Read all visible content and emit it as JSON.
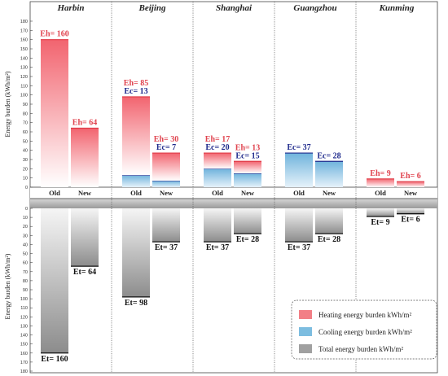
{
  "chart_data": {
    "type": "bar",
    "ylabel_top": "Energy burden (kWh/m²)",
    "ylabel_bottom": "Energy burden (kWh/m²)",
    "ylim_top": [
      0,
      180
    ],
    "ylim_bottom": [
      0,
      180
    ],
    "yticks": [
      0,
      10,
      20,
      30,
      40,
      50,
      60,
      70,
      80,
      90,
      100,
      110,
      120,
      130,
      140,
      150,
      160,
      170,
      180
    ],
    "categories": [
      "Old",
      "New"
    ],
    "cities": [
      {
        "name": "Harbin",
        "bars": [
          {
            "label": "Old",
            "heating": 160,
            "heating_text": "Eh= 160",
            "cooling": 0,
            "cooling_text": "",
            "total": 160,
            "total_text": "Et= 160"
          },
          {
            "label": "New",
            "heating": 64,
            "heating_text": "Eh= 64",
            "cooling": 0,
            "cooling_text": "",
            "total": 64,
            "total_text": "Et= 64"
          }
        ]
      },
      {
        "name": "Beijing",
        "bars": [
          {
            "label": "Old",
            "heating": 85,
            "heating_text": "Eh= 85",
            "cooling": 13,
            "cooling_text": "Ec= 13",
            "total": 98,
            "total_text": "Et= 98"
          },
          {
            "label": "New",
            "heating": 30,
            "heating_text": "Eh= 30",
            "cooling": 7,
            "cooling_text": "Ec= 7",
            "total": 37,
            "total_text": "Et= 37"
          }
        ]
      },
      {
        "name": "Shanghai",
        "bars": [
          {
            "label": "Old",
            "heating": 17,
            "heating_text": "Eh= 17",
            "cooling": 20,
            "cooling_text": "Ec= 20",
            "total": 37,
            "total_text": "Et= 37"
          },
          {
            "label": "New",
            "heating": 13,
            "heating_text": "Eh= 13",
            "cooling": 15,
            "cooling_text": "Ec= 15",
            "total": 28,
            "total_text": "Et= 28"
          }
        ]
      },
      {
        "name": "Guangzhou",
        "bars": [
          {
            "label": "Old",
            "heating": 0,
            "heating_text": "",
            "cooling": 37,
            "cooling_text": "Ec= 37",
            "total": 37,
            "total_text": "Et= 37"
          },
          {
            "label": "New",
            "heating": 0,
            "heating_text": "",
            "cooling": 28,
            "cooling_text": "Ec= 28",
            "total": 28,
            "total_text": "Et= 28"
          }
        ]
      },
      {
        "name": "Kunming",
        "bars": [
          {
            "label": "Old",
            "heating": 9,
            "heating_text": "Eh= 9",
            "cooling": 0,
            "cooling_text": "",
            "total": 9,
            "total_text": "Et= 9"
          },
          {
            "label": "New",
            "heating": 6,
            "heating_text": "Eh= 6",
            "cooling": 0,
            "cooling_text": "",
            "total": 6,
            "total_text": "Et= 6"
          }
        ]
      }
    ],
    "legend": {
      "position": "bottom-right",
      "items": [
        {
          "name": "Heating energy burden kWh/m²",
          "color": "#f27f86"
        },
        {
          "name": "Cooling energy burden kWh/m²",
          "color": "#7dbde0"
        },
        {
          "name": "Total energy burden kWh/m²",
          "color": "#a0a0a0"
        }
      ]
    },
    "colors": {
      "heating": "#f2646f",
      "heating_line": "#e03945",
      "cooling": "#6fb3dc",
      "cooling_line": "#1f2a8c",
      "total": "#8c8c8c",
      "total_line": "#111111"
    },
    "grid": false
  }
}
